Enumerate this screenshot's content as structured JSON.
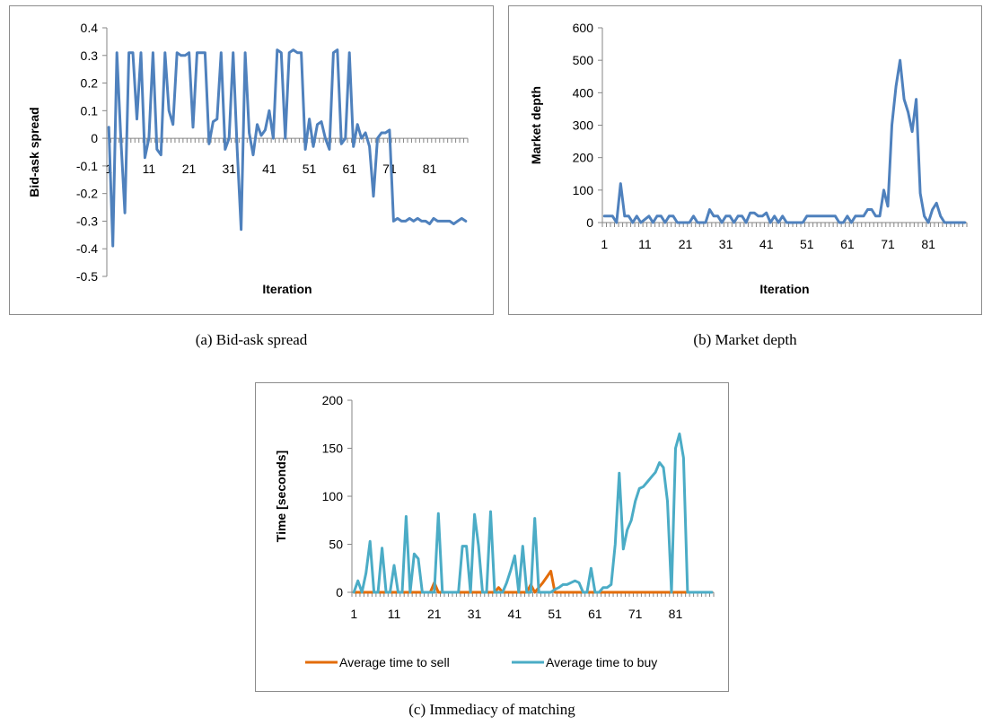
{
  "captions": {
    "a": "(a) Bid-ask spread",
    "b": "(b) Market depth",
    "c": "(c) Immediacy of matching"
  },
  "chart_data": [
    {
      "id": "a",
      "type": "line",
      "xlabel": "Iteration",
      "ylabel": "Bid-ask spread",
      "ylim": [
        -0.5,
        0.4
      ],
      "yticks": [
        -0.5,
        -0.4,
        -0.3,
        -0.2,
        -0.1,
        0,
        0.1,
        0.2,
        0.3,
        0.4
      ],
      "yticklabels": [
        "-0.5",
        "-0.4",
        "-0.3",
        "-0.2",
        "-0.1",
        "0",
        "0.1",
        "0.2",
        "0.3",
        "0.4"
      ],
      "xcount": 90,
      "xticklabels": [
        "1",
        "11",
        "21",
        "31",
        "41",
        "51",
        "61",
        "71",
        "81"
      ],
      "xaxis_at_zero": true,
      "grid": false,
      "legend": "none",
      "series": [
        {
          "color": "#4f81bd",
          "values": [
            0.04,
            -0.39,
            0.31,
            0.0,
            -0.27,
            0.31,
            0.31,
            0.07,
            0.31,
            -0.07,
            0.0,
            0.31,
            -0.04,
            -0.06,
            0.31,
            0.1,
            0.05,
            0.31,
            0.3,
            0.3,
            0.31,
            0.04,
            0.31,
            0.31,
            0.31,
            -0.02,
            0.06,
            0.07,
            0.31,
            -0.04,
            0.0,
            0.31,
            -0.04,
            -0.33,
            0.31,
            0.02,
            -0.06,
            0.05,
            0.01,
            0.03,
            0.1,
            0.0,
            0.32,
            0.31,
            0.0,
            0.31,
            0.32,
            0.31,
            0.31,
            -0.04,
            0.07,
            -0.03,
            0.05,
            0.06,
            0.0,
            -0.04,
            0.31,
            0.32,
            -0.02,
            0.0,
            0.31,
            -0.03,
            0.05,
            0.0,
            0.02,
            -0.03,
            -0.21,
            0.0,
            0.02,
            0.02,
            0.03,
            -0.3,
            -0.29,
            -0.3,
            -0.3,
            -0.29,
            -0.3,
            -0.29,
            -0.3,
            -0.3,
            -0.31,
            -0.29,
            -0.3,
            -0.3,
            -0.3,
            -0.3,
            -0.31,
            -0.3,
            -0.29,
            -0.3
          ]
        }
      ]
    },
    {
      "id": "b",
      "type": "line",
      "xlabel": "Iteration",
      "ylabel": "Market depth",
      "ylim": [
        0,
        600
      ],
      "yticks": [
        0,
        100,
        200,
        300,
        400,
        500,
        600
      ],
      "yticklabels": [
        "0",
        "100",
        "200",
        "300",
        "400",
        "500",
        "600"
      ],
      "xcount": 90,
      "xticklabels": [
        "1",
        "11",
        "21",
        "31",
        "41",
        "51",
        "61",
        "71",
        "81"
      ],
      "xaxis_at_zero": false,
      "grid": false,
      "legend": "none",
      "series": [
        {
          "color": "#4f81bd",
          "values": [
            20,
            20,
            20,
            0,
            120,
            20,
            20,
            0,
            20,
            0,
            10,
            20,
            0,
            20,
            20,
            0,
            20,
            20,
            0,
            0,
            0,
            0,
            20,
            0,
            0,
            0,
            40,
            20,
            20,
            0,
            20,
            20,
            0,
            20,
            20,
            0,
            30,
            30,
            20,
            20,
            30,
            0,
            20,
            0,
            20,
            0,
            0,
            0,
            0,
            0,
            20,
            20,
            20,
            20,
            20,
            20,
            20,
            20,
            0,
            0,
            20,
            0,
            20,
            20,
            20,
            40,
            40,
            20,
            20,
            100,
            50,
            300,
            420,
            500,
            380,
            340,
            280,
            380,
            90,
            20,
            0,
            40,
            60,
            20,
            0,
            0,
            0,
            0,
            0,
            0
          ]
        }
      ]
    },
    {
      "id": "c",
      "type": "line",
      "xlabel": "",
      "ylabel": "Time [seconds]",
      "ylim": [
        0,
        200
      ],
      "yticks": [
        0,
        50,
        100,
        150,
        200
      ],
      "yticklabels": [
        "0",
        "50",
        "100",
        "150",
        "200"
      ],
      "xcount": 90,
      "xticklabels": [
        "1",
        "11",
        "21",
        "31",
        "41",
        "51",
        "61",
        "71",
        "81"
      ],
      "xaxis_at_zero": false,
      "grid": false,
      "legend": "bottom",
      "series": [
        {
          "name": "Average time to sell",
          "color": "#e36c09",
          "values": [
            0,
            0,
            0,
            0,
            0,
            0,
            0,
            0,
            0,
            0,
            0,
            0,
            0,
            0,
            0,
            0,
            0,
            0,
            0,
            0,
            10,
            0,
            0,
            0,
            0,
            0,
            0,
            0,
            0,
            0,
            0,
            0,
            0,
            0,
            0,
            0,
            5,
            0,
            0,
            0,
            0,
            0,
            0,
            0,
            8,
            0,
            5,
            10,
            16,
            22,
            0,
            0,
            0,
            0,
            0,
            0,
            0,
            0,
            0,
            0,
            0,
            0,
            0,
            0,
            0,
            0,
            0,
            0,
            0,
            0,
            0,
            0,
            0,
            0,
            0,
            0,
            0,
            0,
            0,
            0,
            0,
            0,
            0,
            0,
            0,
            0,
            0,
            0,
            0,
            0
          ]
        },
        {
          "name": "Average time to buy",
          "color": "#4bacc6",
          "values": [
            0,
            12,
            0,
            20,
            53,
            0,
            0,
            46,
            0,
            0,
            28,
            0,
            0,
            79,
            0,
            40,
            35,
            0,
            0,
            0,
            0,
            82,
            0,
            0,
            0,
            0,
            0,
            48,
            48,
            0,
            81,
            48,
            0,
            0,
            84,
            0,
            0,
            0,
            10,
            23,
            38,
            0,
            48,
            0,
            0,
            77,
            0,
            0,
            0,
            0,
            3,
            5,
            8,
            8,
            10,
            12,
            10,
            0,
            0,
            25,
            0,
            0,
            5,
            5,
            8,
            50,
            124,
            45,
            65,
            75,
            95,
            108,
            110,
            115,
            120,
            125,
            135,
            130,
            95,
            0,
            150,
            165,
            140,
            0,
            0,
            0,
            0,
            0,
            0,
            0
          ]
        }
      ]
    }
  ]
}
